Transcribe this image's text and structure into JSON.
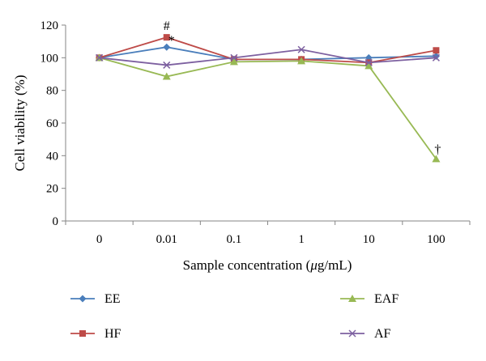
{
  "chart_data": {
    "type": "line",
    "xlabel": "Sample concentration (μg/mL)",
    "xlabel_parts": [
      "Sample concentration (",
      "μ",
      "g/mL)"
    ],
    "ylabel": "Cell viability (%)",
    "categories": [
      "0",
      "0.01",
      "0.1",
      "1",
      "10",
      "100"
    ],
    "ylim": [
      0,
      120
    ],
    "yticks": [
      0,
      20,
      40,
      60,
      80,
      100,
      120
    ],
    "grid": false,
    "legend_position": "bottom",
    "series": [
      {
        "name": "EE",
        "color": "#4a7ebb",
        "marker": "diamond",
        "values": [
          100,
          106.5,
          99,
          99,
          100,
          101
        ]
      },
      {
        "name": "HF",
        "color": "#be4b48",
        "marker": "square",
        "values": [
          100,
          112.5,
          99,
          99,
          97,
          104.5
        ]
      },
      {
        "name": "EAF",
        "color": "#98b954",
        "marker": "triangle",
        "values": [
          100,
          88.5,
          97.5,
          98,
          95,
          38
        ]
      },
      {
        "name": "AF",
        "color": "#7d60a0",
        "marker": "cross",
        "values": [
          100,
          95.5,
          100,
          105,
          97,
          100
        ]
      }
    ],
    "annotations": [
      {
        "text": "#",
        "category": "0.01",
        "series": "HF"
      },
      {
        "text": "*",
        "category": "0.01",
        "series": "EE"
      },
      {
        "text": "†",
        "category": "100",
        "series": "EAF"
      }
    ]
  }
}
